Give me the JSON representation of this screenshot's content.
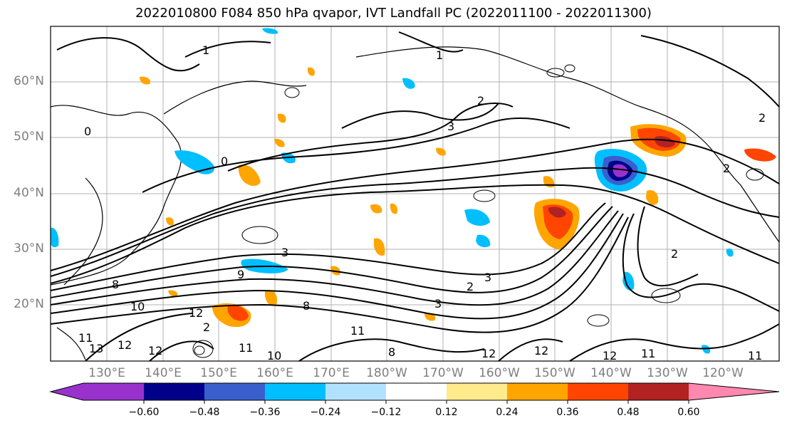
{
  "title": "2022010800 F084 850 hPa qvapor, IVT Landfall PC (2022011100 - 2022011300)",
  "map": {
    "lat_labels": [
      "60°N",
      "50°N",
      "40°N",
      "30°N",
      "20°N"
    ],
    "lon_labels": [
      "130°E",
      "140°E",
      "150°E",
      "160°E",
      "170°E",
      "180°W",
      "170°W",
      "160°W",
      "150°W",
      "140°W",
      "130°W",
      "120°W"
    ],
    "contour_labels": [
      {
        "text": "1"
      },
      {
        "text": "1"
      },
      {
        "text": "2"
      },
      {
        "text": "2"
      },
      {
        "text": "3"
      },
      {
        "text": "3"
      },
      {
        "text": "2"
      },
      {
        "text": "2"
      },
      {
        "text": "0"
      },
      {
        "text": "0"
      },
      {
        "text": "3"
      },
      {
        "text": "9"
      },
      {
        "text": "8"
      },
      {
        "text": "10"
      },
      {
        "text": "11"
      },
      {
        "text": "12"
      },
      {
        "text": "13"
      },
      {
        "text": "11"
      },
      {
        "text": "10"
      },
      {
        "text": "12"
      },
      {
        "text": "2"
      },
      {
        "text": "3"
      },
      {
        "text": "8"
      },
      {
        "text": "11"
      },
      {
        "text": "12"
      },
      {
        "text": "12"
      },
      {
        "text": "12"
      },
      {
        "text": "11"
      },
      {
        "text": "11"
      },
      {
        "text": "12"
      },
      {
        "text": "2"
      },
      {
        "text": "8"
      }
    ]
  },
  "colorbar": {
    "colors": [
      "#9932cc",
      "#00008b",
      "#3a5fcd",
      "#00bfff",
      "#b0e2ff",
      "#ffffff",
      "#ffea8c",
      "#ffa500",
      "#ff4500",
      "#b22222",
      "#ff88b0"
    ],
    "tick_labels": [
      "−0.60",
      "−0.48",
      "−0.36",
      "−0.24",
      "−0.12",
      "0.12",
      "0.24",
      "0.36",
      "0.48",
      "0.60"
    ]
  }
}
